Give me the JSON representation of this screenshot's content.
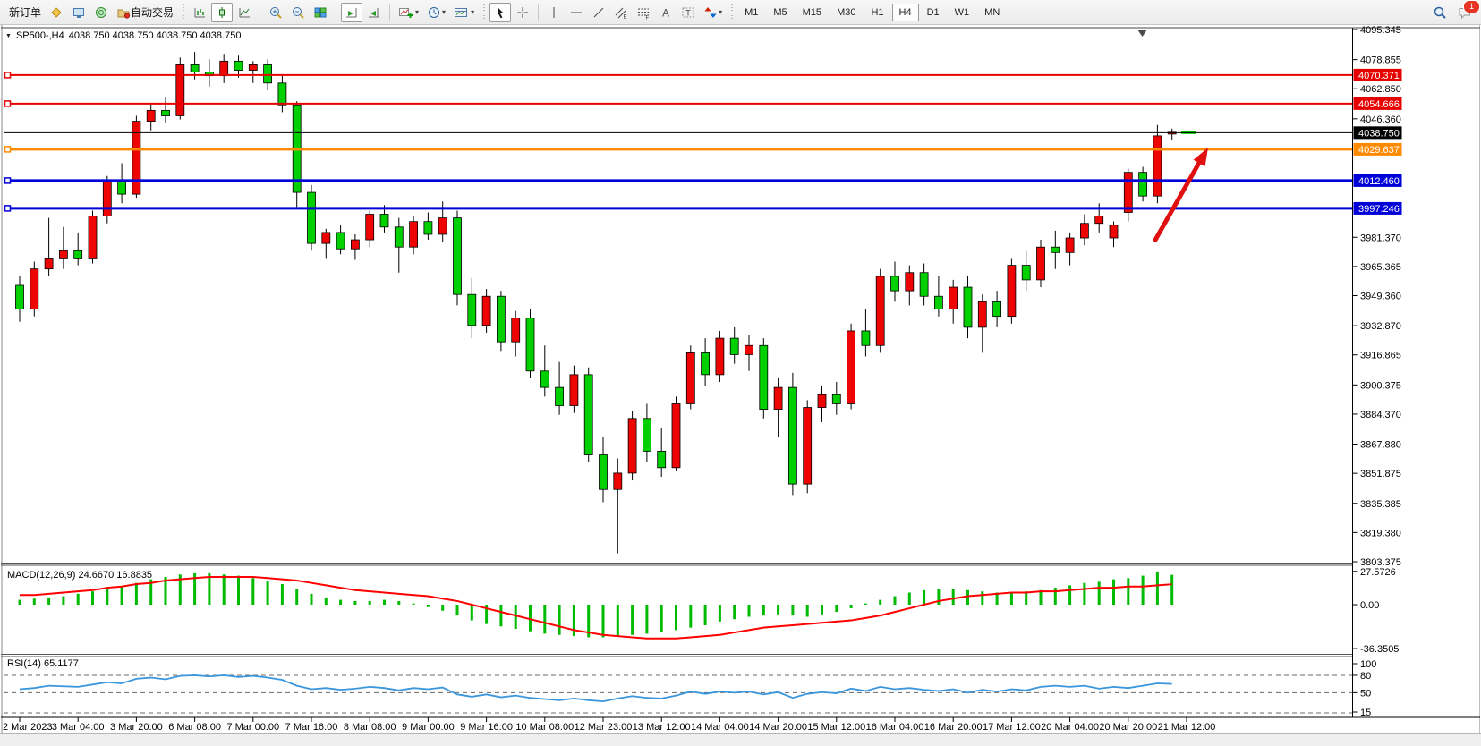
{
  "toolbar": {
    "new_order_label": "新订单",
    "auto_trading_label": "自动交易",
    "timeframes": [
      "M1",
      "M5",
      "M15",
      "M30",
      "H1",
      "H4",
      "D1",
      "W1",
      "MN"
    ],
    "active_timeframe": "H4",
    "notification_count": "1",
    "caret_glyph": "▾",
    "icon_letters": {
      "channel": "E",
      "fibo": "F",
      "text": "A",
      "label": "T"
    }
  },
  "chart": {
    "symbol_dropdown_glyph": "▼",
    "symbol_label": "SP500-,H4",
    "ohlc_values": "4038.750 4038.750 4038.750 4038.750",
    "price_axis_ticks": [
      "4095.345",
      "4078.855",
      "4062.850",
      "4046.360",
      "3981.370",
      "3965.365",
      "3949.360",
      "3932.870",
      "3916.865",
      "3900.375",
      "3884.370",
      "3867.880",
      "3851.875",
      "3835.385",
      "3819.380",
      "3803.375"
    ]
  },
  "macd": {
    "label": "MACD(12,26,9) 24.6670 16.8835",
    "axis_ticks": [
      {
        "v": 27.5726,
        "t": "27.5726"
      },
      {
        "v": 0,
        "t": "0.00"
      },
      {
        "v": -36.3505,
        "t": "-36.3505"
      }
    ]
  },
  "rsi": {
    "label": "RSI(14) 65.1177",
    "axis_ticks": [
      {
        "v": 100,
        "t": "100"
      },
      {
        "v": 80,
        "t": "80"
      },
      {
        "v": 50,
        "t": "50"
      },
      {
        "v": 15,
        "t": "15"
      }
    ],
    "levels": [
      80,
      50,
      15
    ]
  },
  "chart_data": {
    "type": "candlestick",
    "symbol": "SP500-",
    "timeframe": "H4",
    "ylim": [
      3803.375,
      4095.345
    ],
    "last_price": 4038.75,
    "hlines": [
      {
        "price": 4070.371,
        "label": "4070.371",
        "color": "#e60000",
        "width": 2
      },
      {
        "price": 4054.666,
        "label": "4054.666",
        "color": "#e60000",
        "width": 2
      },
      {
        "price": 4038.75,
        "label": "4038.750",
        "color": "#000000",
        "width": 1
      },
      {
        "price": 4029.637,
        "label": "4029.637",
        "color": "#ff8a00",
        "width": 3
      },
      {
        "price": 4012.46,
        "label": "4012.460",
        "color": "#0000d8",
        "width": 3
      },
      {
        "price": 3997.246,
        "label": "3997.246",
        "color": "#0000d8",
        "width": 3
      }
    ],
    "candles": [
      [
        3955,
        3960,
        3935,
        3942
      ],
      [
        3942,
        3968,
        3938,
        3964
      ],
      [
        3964,
        3992,
        3960,
        3970
      ],
      [
        3970,
        3987,
        3964,
        3974
      ],
      [
        3974,
        3984,
        3966,
        3970
      ],
      [
        3970,
        3996,
        3967,
        3993
      ],
      [
        3993,
        4015,
        3989,
        4012
      ],
      [
        4012,
        4022,
        4000,
        4005
      ],
      [
        4005,
        4048,
        4003,
        4045
      ],
      [
        4045,
        4055,
        4040,
        4051
      ],
      [
        4051,
        4058,
        4044,
        4048
      ],
      [
        4048,
        4080,
        4046,
        4076
      ],
      [
        4076,
        4083,
        4068,
        4072
      ],
      [
        4072,
        4079,
        4064,
        4070
      ],
      [
        4070,
        4082,
        4066,
        4078
      ],
      [
        4078,
        4081,
        4069,
        4073
      ],
      [
        4073,
        4078,
        4066,
        4076
      ],
      [
        4076,
        4079,
        4062,
        4066
      ],
      [
        4066,
        4070,
        4050,
        4054
      ],
      [
        4054,
        4056,
        3998,
        4006
      ],
      [
        4006,
        4010,
        3974,
        3978
      ],
      [
        3978,
        3986,
        3970,
        3984
      ],
      [
        3984,
        3988,
        3972,
        3975
      ],
      [
        3975,
        3983,
        3969,
        3980
      ],
      [
        3980,
        3996,
        3976,
        3994
      ],
      [
        3994,
        3999,
        3984,
        3987
      ],
      [
        3987,
        3992,
        3962,
        3976
      ],
      [
        3976,
        3993,
        3972,
        3990
      ],
      [
        3990,
        3995,
        3980,
        3983
      ],
      [
        3983,
        4001,
        3979,
        3992
      ],
      [
        3992,
        3996,
        3944,
        3950
      ],
      [
        3950,
        3959,
        3926,
        3933
      ],
      [
        3933,
        3953,
        3929,
        3949
      ],
      [
        3949,
        3952,
        3919,
        3924
      ],
      [
        3924,
        3941,
        3916,
        3937
      ],
      [
        3937,
        3942,
        3904,
        3908
      ],
      [
        3908,
        3922,
        3894,
        3899
      ],
      [
        3899,
        3913,
        3884,
        3889
      ],
      [
        3889,
        3911,
        3885,
        3906
      ],
      [
        3906,
        3910,
        3858,
        3862
      ],
      [
        3862,
        3872,
        3836,
        3843
      ],
      [
        3843,
        3860,
        3808,
        3852
      ],
      [
        3852,
        3886,
        3848,
        3882
      ],
      [
        3882,
        3890,
        3858,
        3864
      ],
      [
        3864,
        3877,
        3850,
        3855
      ],
      [
        3855,
        3894,
        3853,
        3890
      ],
      [
        3890,
        3922,
        3887,
        3918
      ],
      [
        3918,
        3926,
        3900,
        3906
      ],
      [
        3906,
        3930,
        3902,
        3926
      ],
      [
        3926,
        3932,
        3912,
        3917
      ],
      [
        3917,
        3928,
        3908,
        3922
      ],
      [
        3922,
        3926,
        3882,
        3887
      ],
      [
        3887,
        3904,
        3872,
        3899
      ],
      [
        3899,
        3907,
        3840,
        3846
      ],
      [
        3846,
        3892,
        3841,
        3888
      ],
      [
        3888,
        3900,
        3880,
        3895
      ],
      [
        3895,
        3902,
        3884,
        3890
      ],
      [
        3890,
        3934,
        3887,
        3930
      ],
      [
        3930,
        3942,
        3916,
        3922
      ],
      [
        3922,
        3964,
        3918,
        3960
      ],
      [
        3960,
        3968,
        3946,
        3952
      ],
      [
        3952,
        3966,
        3944,
        3962
      ],
      [
        3962,
        3967,
        3944,
        3949
      ],
      [
        3949,
        3960,
        3938,
        3942
      ],
      [
        3942,
        3958,
        3934,
        3954
      ],
      [
        3954,
        3960,
        3926,
        3932
      ],
      [
        3932,
        3950,
        3918,
        3946
      ],
      [
        3946,
        3952,
        3932,
        3938
      ],
      [
        3938,
        3970,
        3934,
        3966
      ],
      [
        3966,
        3974,
        3952,
        3958
      ],
      [
        3958,
        3980,
        3954,
        3976
      ],
      [
        3976,
        3985,
        3964,
        3973
      ],
      [
        3973,
        3984,
        3966,
        3981
      ],
      [
        3981,
        3994,
        3977,
        3989
      ],
      [
        3989,
        4000,
        3984,
        3993
      ],
      [
        3981,
        3990,
        3976,
        3988
      ],
      [
        3995,
        4019,
        3990,
        4017
      ],
      [
        4017,
        4020,
        4001,
        4004
      ],
      [
        4004,
        4043,
        4000,
        4037
      ],
      [
        4038,
        4041,
        4035,
        4039
      ]
    ],
    "macd": {
      "histogram": [
        4,
        5,
        6,
        7,
        9,
        11,
        13,
        15,
        18,
        21,
        23,
        25,
        26,
        26,
        25,
        24,
        22,
        20,
        17,
        13,
        9,
        6,
        4,
        3,
        3,
        4,
        3,
        1,
        -2,
        -5,
        -9,
        -13,
        -16,
        -18,
        -20,
        -22,
        -24,
        -25,
        -26,
        -27,
        -27,
        -26,
        -25,
        -24,
        -23,
        -21,
        -19,
        -17,
        -14,
        -12,
        -10,
        -9,
        -8,
        -9,
        -10,
        -8,
        -6,
        -3,
        1,
        4,
        7,
        10,
        12,
        13,
        13,
        12,
        11,
        10,
        10,
        11,
        12,
        14,
        16,
        18,
        19,
        21,
        22,
        24,
        27.5,
        24.7
      ],
      "signal": [
        8,
        8,
        9,
        10,
        11,
        12,
        14,
        15,
        17,
        18,
        20,
        21,
        22,
        23,
        23,
        23,
        23,
        22,
        21,
        20,
        18,
        16,
        14,
        12,
        11,
        10,
        9,
        8,
        7,
        5,
        3,
        0,
        -3,
        -6,
        -9,
        -12,
        -15,
        -18,
        -21,
        -23,
        -25,
        -26,
        -27,
        -28,
        -28,
        -28,
        -27,
        -26,
        -25,
        -23,
        -21,
        -19,
        -18,
        -17,
        -16,
        -15,
        -14,
        -13,
        -11,
        -9,
        -6,
        -3,
        0,
        3,
        5,
        7,
        8,
        9,
        10,
        10,
        11,
        11,
        12,
        13,
        14,
        14,
        15,
        15,
        16,
        16.9
      ]
    },
    "rsi_values": [
      56,
      58,
      62,
      61,
      60,
      64,
      68,
      66,
      74,
      76,
      73,
      79,
      80,
      78,
      80,
      77,
      79,
      76,
      72,
      62,
      56,
      58,
      55,
      57,
      60,
      58,
      54,
      58,
      56,
      59,
      47,
      43,
      47,
      42,
      45,
      41,
      39,
      37,
      40,
      37,
      35,
      40,
      44,
      41,
      40,
      45,
      52,
      48,
      52,
      50,
      52,
      47,
      51,
      41,
      48,
      51,
      49,
      57,
      53,
      60,
      56,
      58,
      55,
      53,
      56,
      50,
      55,
      52,
      56,
      54,
      60,
      62,
      60,
      62,
      57,
      60,
      58,
      62,
      66,
      65.1
    ],
    "time_labels": [
      "2 Mar 2023",
      "3 Mar 04:00",
      "3 Mar 20:00",
      "6 Mar 08:00",
      "7 Mar 00:00",
      "7 Mar 16:00",
      "8 Mar 08:00",
      "9 Mar 00:00",
      "9 Mar 16:00",
      "10 Mar 08:00",
      "12 Mar 23:00",
      "13 Mar 12:00",
      "14 Mar 04:00",
      "14 Mar 20:00",
      "15 Mar 12:00",
      "16 Mar 04:00",
      "16 Mar 20:00",
      "17 Mar 12:00",
      "20 Mar 04:00",
      "20 Mar 20:00",
      "21 Mar 12:00"
    ],
    "annotation_arrow": {
      "from": [
        1290,
        270
      ],
      "to": [
        1350,
        165
      ],
      "color": "#e01010"
    },
    "colors": {
      "bull": "#ef0404",
      "bear": "#00cf00",
      "macd_hist": "#00bb00",
      "macd_signal": "#ff0000",
      "rsi_line": "#3a96dd"
    }
  }
}
